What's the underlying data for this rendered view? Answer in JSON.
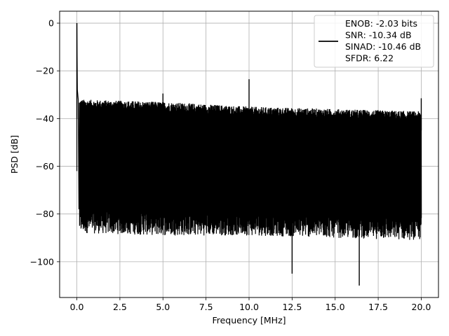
{
  "chart_data": {
    "type": "line",
    "title": "",
    "xlabel": "Frequency [MHz]",
    "ylabel": "PSD [dB]",
    "xlim": [
      -1.0,
      21.0
    ],
    "ylim": [
      -115,
      5
    ],
    "xticks": [
      0.0,
      2.5,
      5.0,
      7.5,
      10.0,
      12.5,
      15.0,
      17.5,
      20.0
    ],
    "xtick_labels": [
      "0.0",
      "2.5",
      "5.0",
      "7.5",
      "10.0",
      "12.5",
      "15.0",
      "17.5",
      "20.0"
    ],
    "yticks": [
      0,
      -20,
      -40,
      -60,
      -80,
      -100
    ],
    "ytick_labels": [
      "0",
      "−20",
      "−40",
      "−60",
      "−80",
      "−100"
    ],
    "grid": true,
    "legend_position": "top-right",
    "legend_entries": [
      "ENOB: -2.03 bits",
      "SNR: -10.34 dB",
      "SINAD: -10.46 dB",
      "SFDR: 6.22"
    ],
    "series": [
      {
        "color": "#000000",
        "spikes": [
          {
            "x": 0.0,
            "y": 0.0
          },
          {
            "x": 5.0,
            "y": -29.5
          },
          {
            "x": 10.0,
            "y": -23.5
          },
          {
            "x": 20.0,
            "y": -31.5
          },
          {
            "x": 12.5,
            "y": -105
          },
          {
            "x": 16.4,
            "y": -110
          }
        ],
        "noise_floor_upper": {
          "x": [
            0.2,
            5.0,
            10.0,
            15.0,
            20.0
          ],
          "y": [
            -35,
            -36,
            -38,
            -39,
            -40
          ]
        },
        "noise_floor_lower": {
          "x": [
            0.2,
            5.0,
            10.0,
            15.0,
            20.0
          ],
          "y": [
            -85,
            -86,
            -86,
            -87,
            -88
          ]
        }
      }
    ]
  }
}
